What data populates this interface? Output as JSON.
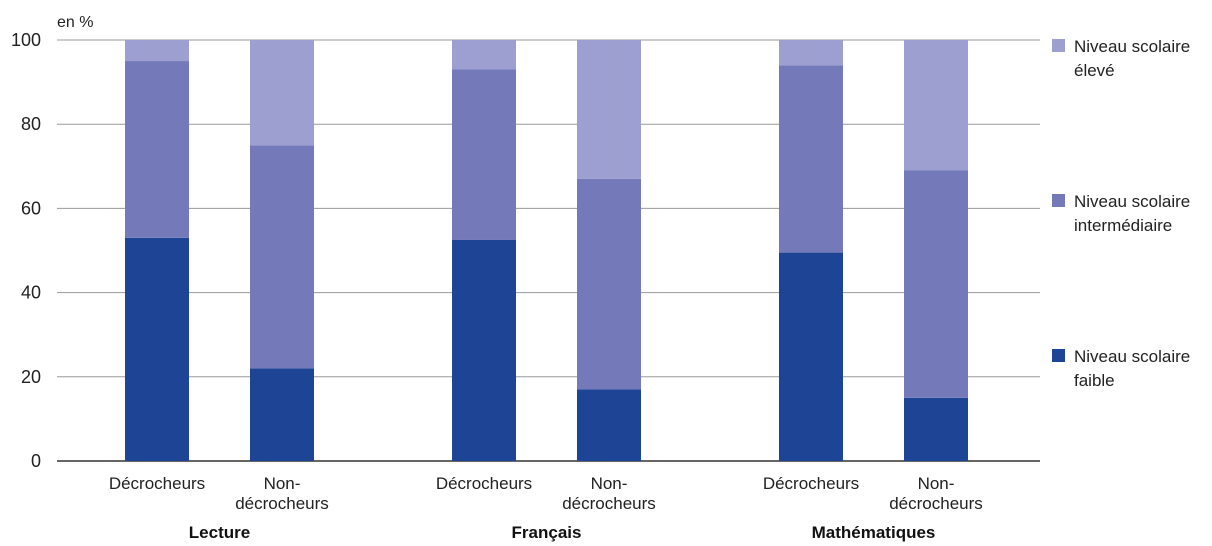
{
  "chart_data": {
    "type": "bar",
    "stacked": true,
    "y_unit_label": "en %",
    "ylim": [
      0,
      100
    ],
    "yticks": [
      0,
      20,
      40,
      60,
      80,
      100
    ],
    "grid": "horizontal",
    "legend_position": "right",
    "groups": [
      {
        "name": "Lecture",
        "categories": [
          {
            "label": "Décrocheurs",
            "lines": [
              "Décrocheurs"
            ]
          },
          {
            "label": "Non-décrocheurs",
            "lines": [
              "Non-",
              "décrocheurs"
            ]
          }
        ]
      },
      {
        "name": "Français",
        "categories": [
          {
            "label": "Décrocheurs",
            "lines": [
              "Décrocheurs"
            ]
          },
          {
            "label": "Non-décrocheurs",
            "lines": [
              "Non-",
              "décrocheurs"
            ]
          }
        ]
      },
      {
        "name": "Mathématiques",
        "categories": [
          {
            "label": "Décrocheurs",
            "lines": [
              "Décrocheurs"
            ]
          },
          {
            "label": "Non-décrocheurs",
            "lines": [
              "Non-",
              "décrocheurs"
            ]
          }
        ]
      }
    ],
    "series": [
      {
        "name": "Niveau scolaire faible",
        "legend_lines": [
          "Niveau scolaire",
          "faible"
        ],
        "color": "#1e4496",
        "values": [
          53,
          22,
          52.5,
          17,
          49.5,
          15
        ]
      },
      {
        "name": "Niveau scolaire intermédiaire",
        "legend_lines": [
          "Niveau scolaire",
          "intermédiaire"
        ],
        "color": "#7379b9",
        "values": [
          42,
          53,
          40.5,
          50,
          44.5,
          54
        ]
      },
      {
        "name": "Niveau scolaire élevé",
        "legend_lines": [
          "Niveau scolaire",
          "élevé"
        ],
        "color": "#9d9fd1",
        "values": [
          5,
          25,
          7,
          33,
          6,
          31
        ]
      }
    ],
    "legend_order": [
      2,
      1,
      0
    ]
  }
}
